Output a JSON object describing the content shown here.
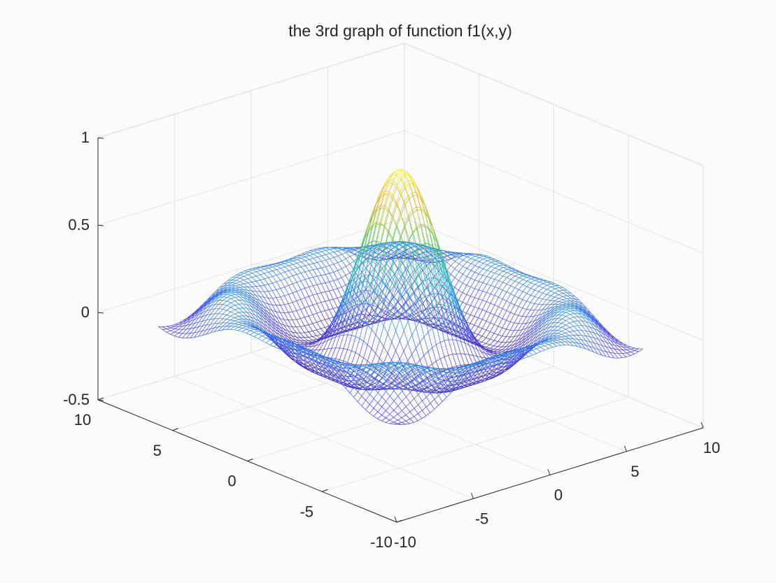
{
  "chart_data": {
    "type": "mesh3d",
    "title": "the 3rd graph of function f1(x,y)",
    "xlabel": "",
    "ylabel": "",
    "zlabel": "",
    "xlim": [
      -10,
      10
    ],
    "ylim": [
      -10,
      10
    ],
    "zlim": [
      -0.5,
      1
    ],
    "x_ticks": [
      -10,
      -5,
      0,
      5,
      10
    ],
    "y_ticks": [
      -10,
      -5,
      0,
      5,
      10
    ],
    "z_ticks": [
      -0.5,
      0,
      0.5,
      1
    ],
    "x_tick_labels": [
      "-10",
      "-5",
      "0",
      "5",
      "10"
    ],
    "y_tick_labels": [
      "-10",
      "-5",
      "0",
      "5",
      "10"
    ],
    "z_tick_labels": [
      "-0.5",
      "0",
      "0.5",
      "1"
    ],
    "surface": {
      "peak_value": 0.9,
      "peak_location": [
        0,
        0
      ],
      "grid_range": [
        -8,
        8
      ],
      "colormap": [
        "#3d26a8",
        "#4a44f2",
        "#1e9ae1",
        "#1bbfb0",
        "#74c843",
        "#e3b62e",
        "#f9fb15"
      ]
    },
    "grid": true,
    "view": "azimuth -37.5, elevation 30",
    "colors": {
      "axis": "#262626",
      "grid": "#e3e3e3",
      "background": "#ffffff"
    }
  }
}
